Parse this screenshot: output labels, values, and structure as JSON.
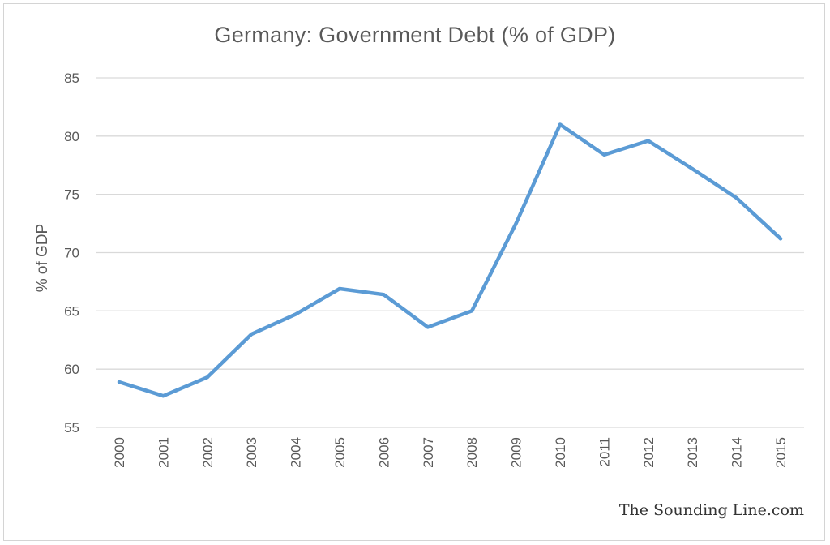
{
  "chart_data": {
    "type": "line",
    "title": "Germany: Government Debt (% of GDP)",
    "xlabel": "",
    "ylabel": "% of GDP",
    "x": [
      "2000",
      "2001",
      "2002",
      "2003",
      "2004",
      "2005",
      "2006",
      "2007",
      "2008",
      "2009",
      "2010",
      "2011",
      "2012",
      "2013",
      "2014",
      "2015"
    ],
    "series": [
      {
        "values": [
          58.9,
          57.7,
          59.3,
          63.0,
          64.7,
          66.9,
          66.4,
          63.6,
          65.0,
          72.5,
          81.0,
          78.4,
          79.6,
          77.2,
          74.7,
          71.2
        ]
      }
    ],
    "ylim": [
      55,
      85
    ],
    "yticks": [
      55,
      60,
      65,
      70,
      75,
      80,
      85
    ],
    "grid": true,
    "legend": "none",
    "line_color": "#5b9bd5",
    "grid_color": "#d9d9d9"
  },
  "watermark": "The Sounding Line.com"
}
